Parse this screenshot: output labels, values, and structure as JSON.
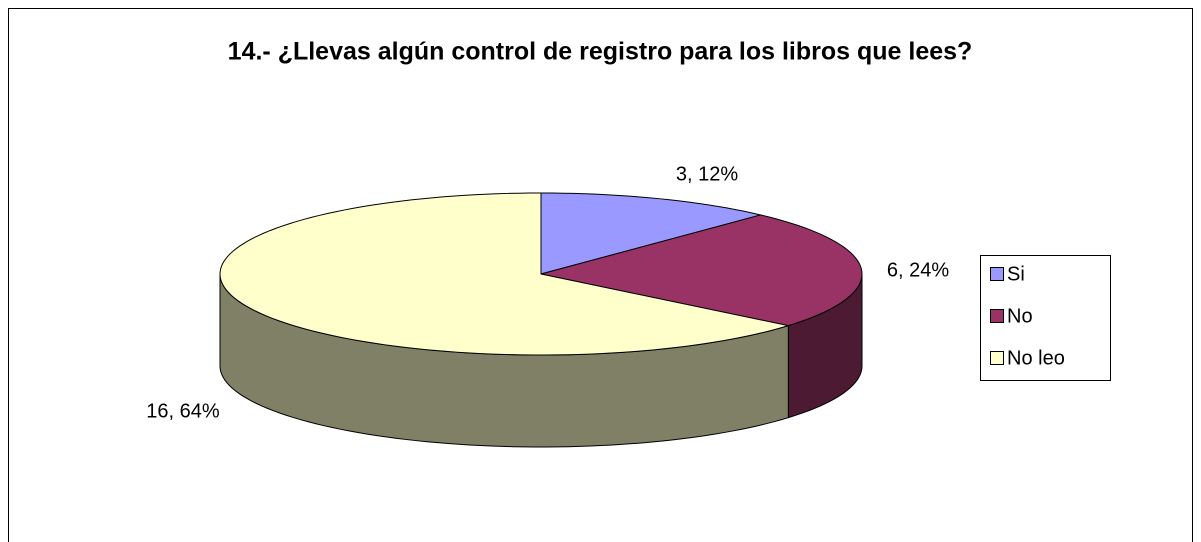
{
  "chart_data": {
    "type": "pie",
    "title": "14.- ¿Llevas algún control de registro para los libros que lees?",
    "categories": [
      "Si",
      "No",
      "No leo"
    ],
    "values": [
      3,
      6,
      16
    ],
    "value_labels": [
      "3, 12%",
      "6, 24%",
      "16, 64%"
    ],
    "colors": [
      "#9999ff",
      "#993366",
      "#ffffcc"
    ],
    "legend": "right"
  }
}
